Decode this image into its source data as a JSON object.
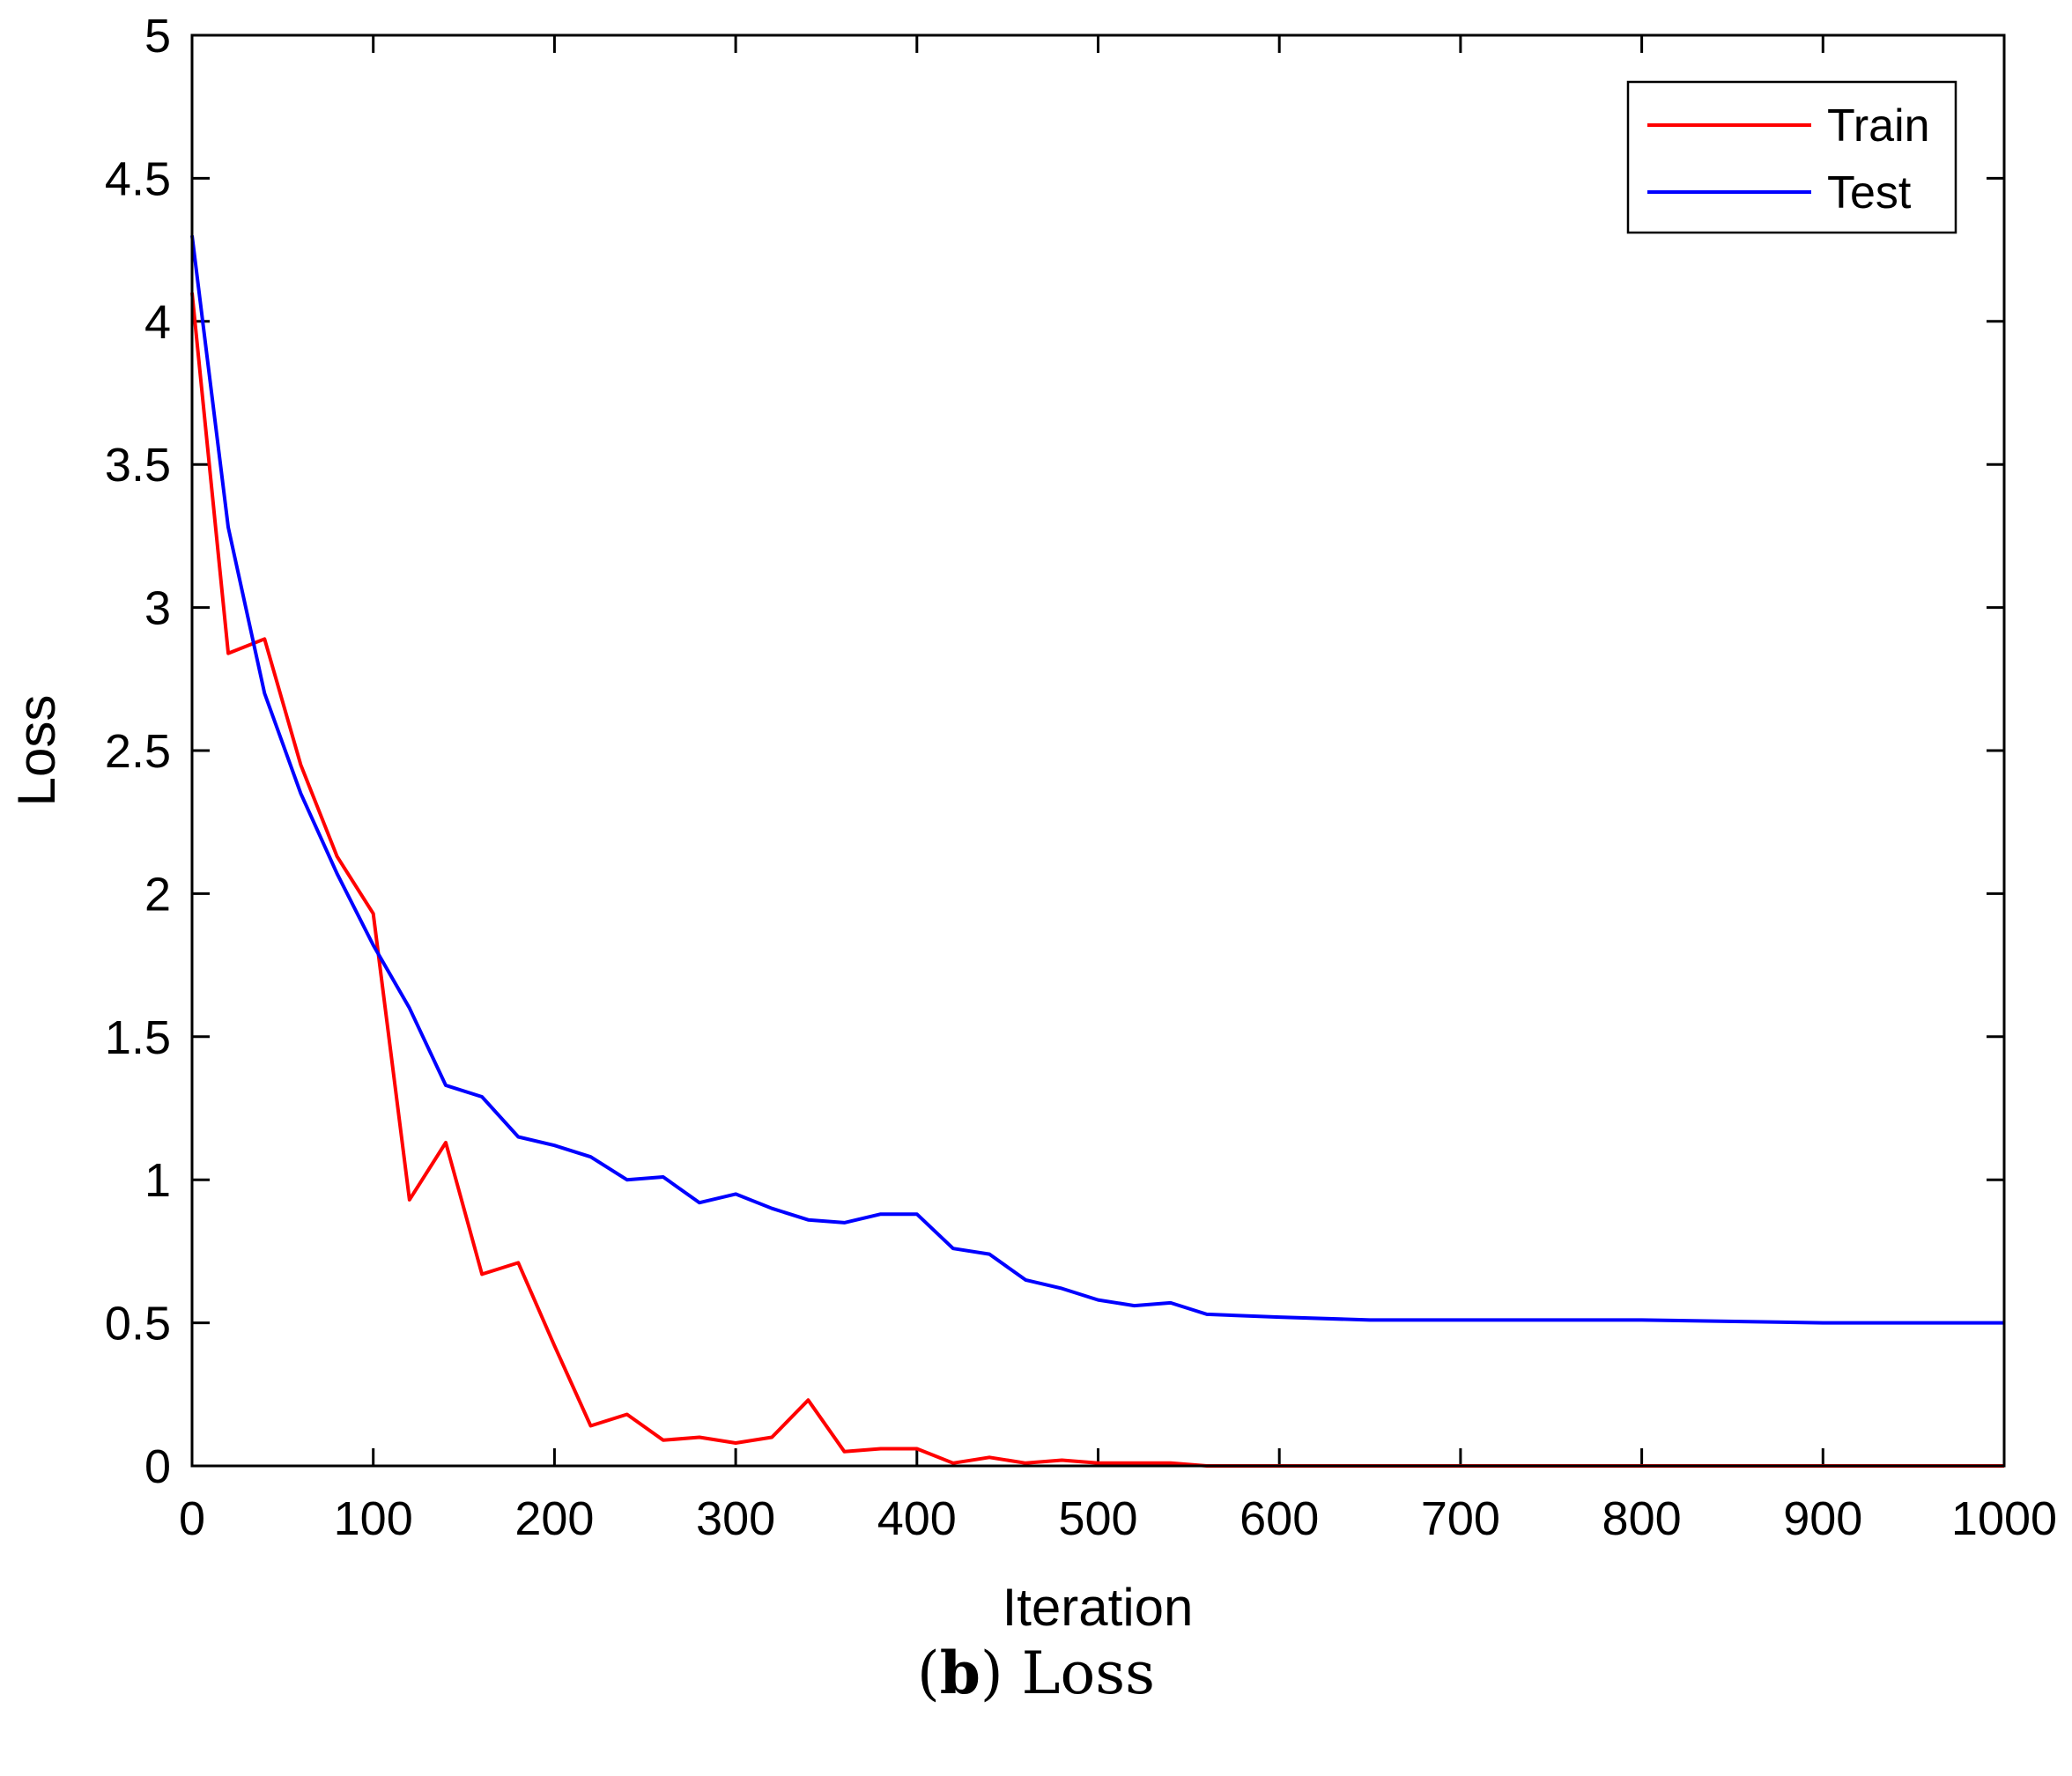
{
  "chart_data": {
    "type": "line",
    "xlabel": "Iteration",
    "ylabel": "Loss",
    "xlim": [
      0,
      1000
    ],
    "ylim": [
      0,
      5
    ],
    "xticks": [
      0,
      100,
      200,
      300,
      400,
      500,
      600,
      700,
      800,
      900,
      1000
    ],
    "yticks": [
      0,
      0.5,
      1,
      1.5,
      2,
      2.5,
      3,
      3.5,
      4,
      4.5,
      5
    ],
    "xtick_labels": [
      "0",
      "100",
      "200",
      "300",
      "400",
      "500",
      "600",
      "700",
      "800",
      "900",
      "1000"
    ],
    "ytick_labels": [
      "0",
      "0.5",
      "1",
      "1.5",
      "2",
      "2.5",
      "3",
      "3.5",
      "4",
      "4.5",
      "5"
    ],
    "grid": false,
    "legend_position": "top-right",
    "series": [
      {
        "name": "Train",
        "color": "#ff0000",
        "x": [
          0,
          20,
          40,
          60,
          80,
          100,
          120,
          140,
          160,
          180,
          200,
          220,
          240,
          260,
          280,
          300,
          320,
          340,
          360,
          380,
          400,
          420,
          440,
          460,
          480,
          500,
          520,
          540,
          560,
          600,
          650,
          700,
          800,
          900,
          1000
        ],
        "y": [
          4.1,
          2.84,
          2.89,
          2.45,
          2.13,
          1.93,
          0.93,
          1.13,
          0.67,
          0.71,
          0.42,
          0.14,
          0.18,
          0.09,
          0.1,
          0.08,
          0.1,
          0.23,
          0.05,
          0.06,
          0.06,
          0.01,
          0.03,
          0.01,
          0.02,
          0.01,
          0.01,
          0.01,
          0.0,
          0.0,
          0.0,
          0.0,
          0.0,
          0.0,
          0.0
        ]
      },
      {
        "name": "Test",
        "color": "#0000ff",
        "x": [
          0,
          20,
          40,
          60,
          80,
          100,
          120,
          140,
          160,
          180,
          200,
          220,
          240,
          260,
          280,
          300,
          320,
          340,
          360,
          380,
          400,
          420,
          440,
          460,
          480,
          500,
          520,
          540,
          560,
          600,
          650,
          700,
          800,
          900,
          1000
        ],
        "y": [
          4.3,
          3.28,
          2.7,
          2.35,
          2.07,
          1.82,
          1.6,
          1.33,
          1.29,
          1.15,
          1.12,
          1.08,
          1.0,
          1.01,
          0.92,
          0.95,
          0.9,
          0.86,
          0.85,
          0.88,
          0.88,
          0.76,
          0.74,
          0.65,
          0.62,
          0.58,
          0.56,
          0.57,
          0.53,
          0.52,
          0.51,
          0.51,
          0.51,
          0.5,
          0.5
        ]
      }
    ]
  },
  "caption": {
    "label": "(b)",
    "label_letter": "b",
    "text": "Loss"
  }
}
